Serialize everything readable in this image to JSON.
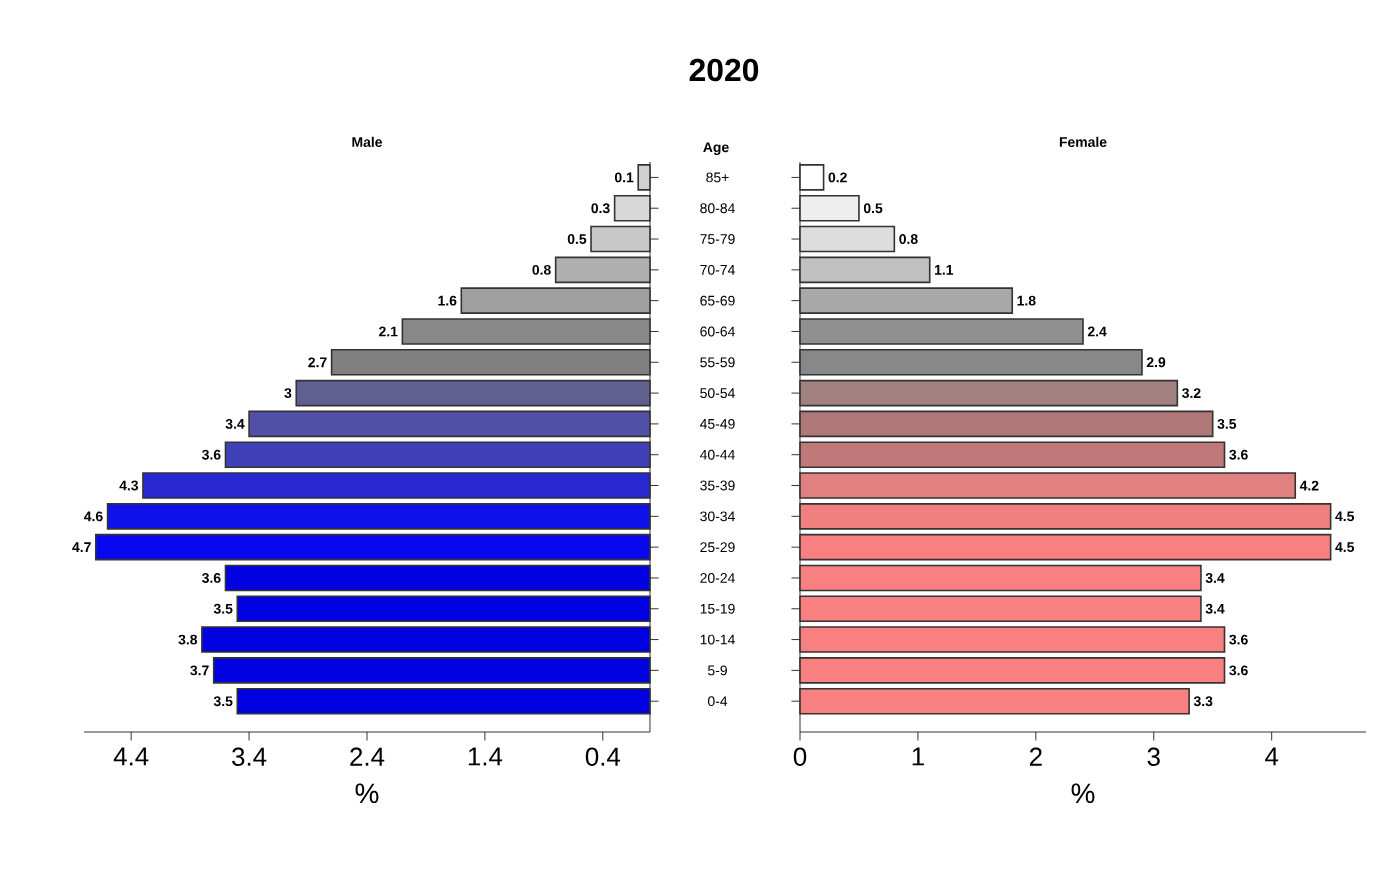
{
  "chart_data": [
    {
      "type": "bar",
      "orientation": "horizontal",
      "subtitle": "Male",
      "xlabel": "%",
      "tick_labels": "x",
      "data_labels": true,
      "categories": [
        null,
        null,
        null,
        null,
        null,
        null,
        null,
        null,
        null,
        null,
        null,
        null,
        null,
        null,
        null,
        null,
        null,
        null
      ],
      "values": [
        0.1,
        0.3,
        0.5,
        0.8,
        1.6,
        2.1,
        2.7,
        3,
        3.4,
        3.6,
        4.3,
        4.6,
        4.7,
        3.6,
        3.5,
        3.8,
        3.7,
        3.5
      ],
      "colors": [
        "#d0d0d0",
        "#d8d8d8",
        "#c8c8c8",
        "#b0b0b0",
        "#a0a0a0",
        "#888888",
        "#808080",
        "#606090",
        "#5050a8",
        "#4040b8",
        "#2828d0",
        "#1010e8",
        "#0808f0",
        "#0000e0",
        "#0000e0",
        "#0000e0",
        "#0000e0",
        "#0000e0"
      ],
      "xlim": [
        4.8,
        0
      ],
      "xticks": [
        0.4,
        1.4,
        2.4,
        3.4,
        4.4
      ]
    },
    {
      "type": "bar",
      "orientation": "horizontal",
      "title": "2020",
      "subtitle": "Female",
      "ylabel": "Age",
      "xlabel": "%",
      "data_labels": true,
      "categories": [
        "85+",
        "80-84",
        "75-79",
        "70-74",
        "65-69",
        "60-64",
        "55-59",
        "50-54",
        "45-49",
        "40-44",
        "35-39",
        "30-34",
        "25-29",
        "20-24",
        "15-19",
        "10-14",
        "5-9",
        "0-4"
      ],
      "values": [
        0.2,
        0.5,
        0.8,
        1.1,
        1.8,
        2.4,
        2.9,
        3.2,
        3.5,
        3.6,
        4.2,
        4.5,
        4.5,
        3.4,
        3.4,
        3.6,
        3.6,
        3.3
      ],
      "colors": [
        "#ffffff",
        "#eeeeee",
        "#dddddd",
        "#c0c0c0",
        "#a8a8a8",
        "#909090",
        "#888888",
        "#a08080",
        "#b07878",
        "#c07878",
        "#e08080",
        "#f08080",
        "#f88080",
        "#f88080",
        "#f88080",
        "#f88080",
        "#f88080",
        "#f88080"
      ],
      "xlim": [
        0,
        4.8
      ],
      "xticks": [
        0,
        1,
        2,
        3,
        4
      ]
    }
  ]
}
